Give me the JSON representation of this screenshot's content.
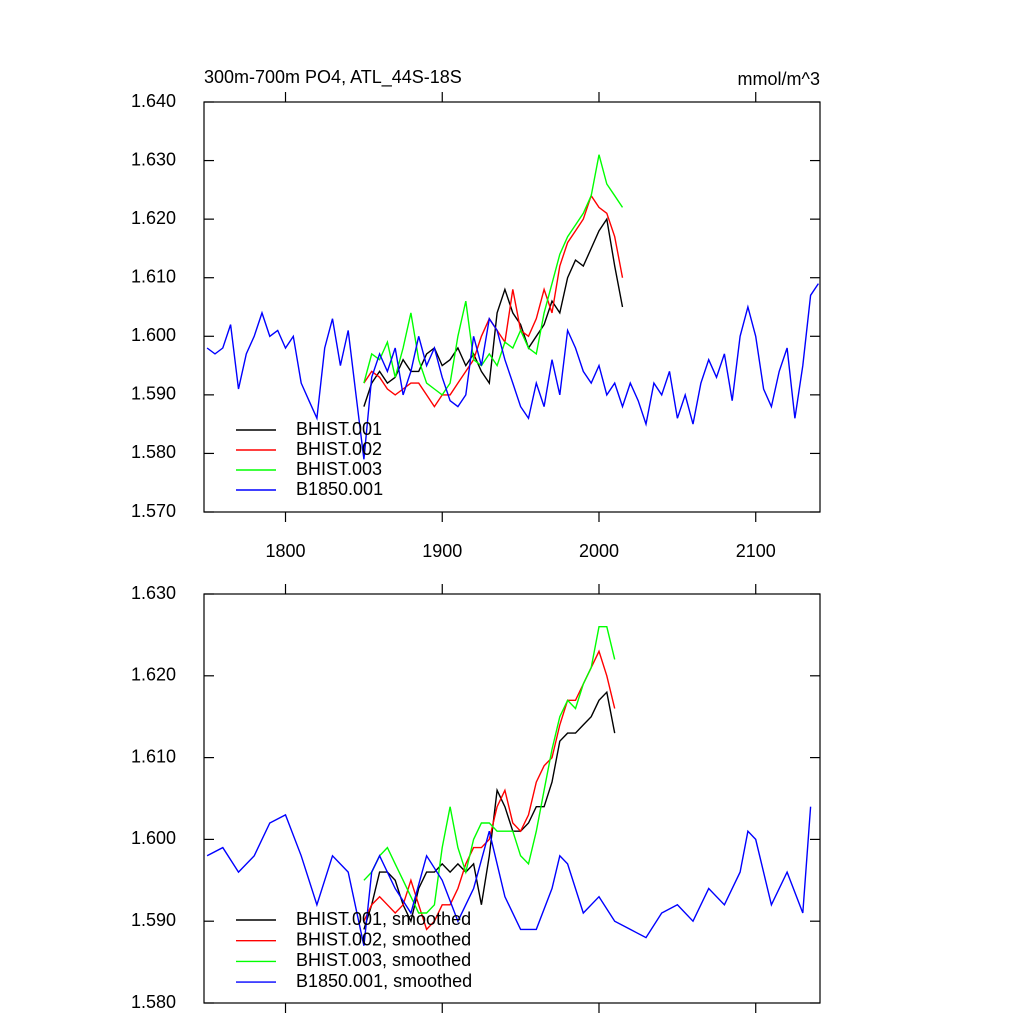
{
  "chart_data": [
    {
      "type": "line",
      "title": "300m-700m PO4, ATL_44S-18S",
      "y_units": "mmol/m^3",
      "xlim": [
        1748,
        2141
      ],
      "xticks": [
        1800,
        1900,
        2000,
        2100
      ],
      "xtick_labels": true,
      "ylim": [
        1.57,
        1.64
      ],
      "yticks": [
        {
          "value": 1.57,
          "label": "1.570"
        },
        {
          "value": 1.58,
          "label": "1.580"
        },
        {
          "value": 1.59,
          "label": "1.590"
        },
        {
          "value": 1.6,
          "label": "1.600"
        },
        {
          "value": 1.61,
          "label": "1.610"
        },
        {
          "value": 1.62,
          "label": "1.620"
        },
        {
          "value": 1.63,
          "label": "1.630"
        },
        {
          "value": 1.64,
          "label": "1.640"
        }
      ],
      "legend": "lower left",
      "series": [
        {
          "name": "BHIST.001",
          "color": "#000000",
          "x": [
            1850,
            1855,
            1860,
            1865,
            1870,
            1875,
            1880,
            1885,
            1890,
            1895,
            1900,
            1905,
            1910,
            1915,
            1920,
            1925,
            1930,
            1935,
            1940,
            1945,
            1950,
            1955,
            1960,
            1965,
            1970,
            1975,
            1980,
            1985,
            1990,
            1995,
            2000,
            2005,
            2010,
            2015
          ],
          "values": [
            1.588,
            1.592,
            1.594,
            1.592,
            1.593,
            1.596,
            1.594,
            1.594,
            1.597,
            1.598,
            1.595,
            1.596,
            1.598,
            1.595,
            1.597,
            1.594,
            1.592,
            1.604,
            1.608,
            1.604,
            1.602,
            1.598,
            1.6,
            1.602,
            1.606,
            1.604,
            1.61,
            1.613,
            1.612,
            1.615,
            1.618,
            1.62,
            1.612,
            1.605
          ]
        },
        {
          "name": "BHIST.002",
          "color": "#ff0000",
          "x": [
            1850,
            1855,
            1860,
            1865,
            1870,
            1875,
            1880,
            1885,
            1890,
            1895,
            1900,
            1905,
            1910,
            1915,
            1920,
            1925,
            1930,
            1935,
            1940,
            1945,
            1950,
            1955,
            1960,
            1965,
            1970,
            1975,
            1980,
            1985,
            1990,
            1995,
            2000,
            2005,
            2010,
            2015
          ],
          "values": [
            1.592,
            1.594,
            1.593,
            1.591,
            1.59,
            1.591,
            1.592,
            1.592,
            1.59,
            1.588,
            1.59,
            1.59,
            1.592,
            1.594,
            1.596,
            1.6,
            1.603,
            1.601,
            1.599,
            1.608,
            1.601,
            1.6,
            1.603,
            1.608,
            1.604,
            1.612,
            1.616,
            1.618,
            1.62,
            1.624,
            1.622,
            1.621,
            1.617,
            1.61
          ]
        },
        {
          "name": "BHIST.003",
          "color": "#00ff00",
          "x": [
            1850,
            1855,
            1860,
            1865,
            1870,
            1875,
            1880,
            1885,
            1890,
            1895,
            1900,
            1905,
            1910,
            1915,
            1920,
            1925,
            1930,
            1935,
            1940,
            1945,
            1950,
            1955,
            1960,
            1965,
            1970,
            1975,
            1980,
            1985,
            1990,
            1995,
            2000,
            2005,
            2010,
            2015
          ],
          "values": [
            1.592,
            1.597,
            1.596,
            1.599,
            1.593,
            1.598,
            1.604,
            1.596,
            1.592,
            1.591,
            1.59,
            1.592,
            1.6,
            1.606,
            1.596,
            1.595,
            1.597,
            1.595,
            1.599,
            1.598,
            1.601,
            1.598,
            1.597,
            1.604,
            1.609,
            1.614,
            1.617,
            1.619,
            1.621,
            1.624,
            1.631,
            1.626,
            1.624,
            1.622
          ]
        },
        {
          "name": "B1850.001",
          "color": "#0000ff",
          "x": [
            1750,
            1755,
            1760,
            1765,
            1770,
            1775,
            1780,
            1785,
            1790,
            1795,
            1800,
            1805,
            1810,
            1815,
            1820,
            1825,
            1830,
            1835,
            1840,
            1845,
            1850,
            1855,
            1860,
            1865,
            1870,
            1875,
            1880,
            1885,
            1890,
            1895,
            1900,
            1905,
            1910,
            1915,
            1920,
            1925,
            1930,
            1935,
            1940,
            1945,
            1950,
            1955,
            1960,
            1965,
            1970,
            1975,
            1980,
            1985,
            1990,
            1995,
            2000,
            2005,
            2010,
            2015,
            2020,
            2025,
            2030,
            2035,
            2040,
            2045,
            2050,
            2055,
            2060,
            2065,
            2070,
            2075,
            2080,
            2085,
            2090,
            2095,
            2100,
            2105,
            2110,
            2115,
            2120,
            2125,
            2130,
            2135,
            2140
          ],
          "values": [
            1.598,
            1.597,
            1.598,
            1.602,
            1.591,
            1.597,
            1.6,
            1.604,
            1.6,
            1.601,
            1.598,
            1.6,
            1.592,
            1.589,
            1.586,
            1.598,
            1.603,
            1.595,
            1.601,
            1.59,
            1.579,
            1.593,
            1.597,
            1.594,
            1.598,
            1.59,
            1.594,
            1.6,
            1.595,
            1.598,
            1.593,
            1.589,
            1.588,
            1.59,
            1.6,
            1.595,
            1.603,
            1.601,
            1.596,
            1.592,
            1.588,
            1.586,
            1.592,
            1.588,
            1.596,
            1.59,
            1.601,
            1.598,
            1.594,
            1.592,
            1.595,
            1.59,
            1.592,
            1.588,
            1.592,
            1.589,
            1.585,
            1.592,
            1.59,
            1.594,
            1.586,
            1.59,
            1.585,
            1.592,
            1.596,
            1.593,
            1.597,
            1.589,
            1.6,
            1.605,
            1.6,
            1.591,
            1.588,
            1.594,
            1.598,
            1.586,
            1.595,
            1.607,
            1.609
          ]
        }
      ]
    },
    {
      "type": "line",
      "xlim": [
        1748,
        2141
      ],
      "xticks": [
        1800,
        1900,
        2000,
        2100
      ],
      "xtick_labels": false,
      "ylim": [
        1.58,
        1.63
      ],
      "yticks": [
        {
          "value": 1.58,
          "label": "1.580"
        },
        {
          "value": 1.59,
          "label": "1.590"
        },
        {
          "value": 1.6,
          "label": "1.600"
        },
        {
          "value": 1.61,
          "label": "1.610"
        },
        {
          "value": 1.62,
          "label": "1.620"
        },
        {
          "value": 1.63,
          "label": "1.630"
        }
      ],
      "legend": "lower left",
      "series": [
        {
          "name": "BHIST.001, smoothed",
          "color": "#000000",
          "x": [
            1850,
            1855,
            1860,
            1865,
            1870,
            1875,
            1880,
            1885,
            1890,
            1895,
            1900,
            1905,
            1910,
            1915,
            1920,
            1925,
            1930,
            1935,
            1940,
            1945,
            1950,
            1955,
            1960,
            1965,
            1970,
            1975,
            1980,
            1985,
            1990,
            1995,
            2000,
            2005,
            2010
          ],
          "values": [
            1.589,
            1.592,
            1.596,
            1.596,
            1.595,
            1.592,
            1.59,
            1.594,
            1.596,
            1.596,
            1.597,
            1.596,
            1.597,
            1.596,
            1.597,
            1.592,
            1.598,
            1.606,
            1.604,
            1.601,
            1.601,
            1.602,
            1.604,
            1.604,
            1.607,
            1.612,
            1.613,
            1.613,
            1.614,
            1.615,
            1.617,
            1.618,
            1.613
          ]
        },
        {
          "name": "BHIST.002, smoothed",
          "color": "#ff0000",
          "x": [
            1850,
            1855,
            1860,
            1865,
            1870,
            1875,
            1880,
            1885,
            1890,
            1895,
            1900,
            1905,
            1910,
            1915,
            1920,
            1925,
            1930,
            1935,
            1940,
            1945,
            1950,
            1955,
            1960,
            1965,
            1970,
            1975,
            1980,
            1985,
            1990,
            1995,
            2000,
            2005,
            2010
          ],
          "values": [
            1.59,
            1.592,
            1.593,
            1.592,
            1.591,
            1.592,
            1.595,
            1.592,
            1.589,
            1.59,
            1.592,
            1.592,
            1.594,
            1.597,
            1.599,
            1.599,
            1.6,
            1.604,
            1.606,
            1.602,
            1.601,
            1.603,
            1.607,
            1.609,
            1.61,
            1.614,
            1.617,
            1.617,
            1.619,
            1.621,
            1.623,
            1.62,
            1.616
          ]
        },
        {
          "name": "BHIST.003, smoothed",
          "color": "#00ff00",
          "x": [
            1850,
            1855,
            1860,
            1865,
            1870,
            1875,
            1880,
            1885,
            1890,
            1895,
            1900,
            1905,
            1910,
            1915,
            1920,
            1925,
            1930,
            1935,
            1940,
            1945,
            1950,
            1955,
            1960,
            1965,
            1970,
            1975,
            1980,
            1985,
            1990,
            1995,
            2000,
            2005,
            2010
          ],
          "values": [
            1.595,
            1.596,
            1.598,
            1.599,
            1.597,
            1.595,
            1.593,
            1.591,
            1.591,
            1.592,
            1.599,
            1.604,
            1.599,
            1.596,
            1.6,
            1.602,
            1.602,
            1.601,
            1.601,
            1.601,
            1.598,
            1.597,
            1.601,
            1.606,
            1.611,
            1.615,
            1.617,
            1.616,
            1.619,
            1.621,
            1.626,
            1.626,
            1.622
          ]
        },
        {
          "name": "B1850.001, smoothed",
          "color": "#0000ff",
          "x": [
            1750,
            1760,
            1770,
            1780,
            1790,
            1800,
            1810,
            1820,
            1830,
            1840,
            1850,
            1855,
            1860,
            1870,
            1880,
            1890,
            1900,
            1910,
            1920,
            1930,
            1940,
            1950,
            1960,
            1970,
            1975,
            1980,
            1990,
            2000,
            2010,
            2020,
            2030,
            2040,
            2050,
            2060,
            2070,
            2080,
            2090,
            2095,
            2100,
            2110,
            2120,
            2130,
            2135
          ],
          "values": [
            1.598,
            1.599,
            1.596,
            1.598,
            1.602,
            1.603,
            1.598,
            1.592,
            1.598,
            1.596,
            1.587,
            1.596,
            1.598,
            1.594,
            1.591,
            1.598,
            1.595,
            1.59,
            1.594,
            1.601,
            1.593,
            1.589,
            1.589,
            1.594,
            1.598,
            1.597,
            1.591,
            1.593,
            1.59,
            1.589,
            1.588,
            1.591,
            1.592,
            1.59,
            1.594,
            1.592,
            1.596,
            1.601,
            1.6,
            1.592,
            1.596,
            1.591,
            1.604
          ]
        }
      ]
    }
  ]
}
